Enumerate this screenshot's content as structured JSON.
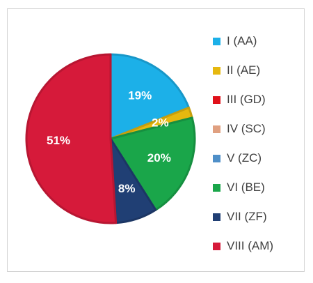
{
  "chart_data": {
    "type": "pie",
    "categories": [
      "I (AA)",
      "II (AE)",
      "III (GD)",
      "IV (SC)",
      "V (ZC)",
      "VI (BE)",
      "VII (ZF)",
      "VIII (AM)"
    ],
    "values": [
      19,
      2,
      0,
      0,
      0,
      20,
      8,
      51
    ],
    "labels": [
      "19%",
      "2%",
      "",
      "",
      "",
      "20%",
      "8%",
      "51%"
    ],
    "colors": [
      "#1cb0e8",
      "#e6b80f",
      "#e0101a",
      "#e0a080",
      "#4f8fc8",
      "#1aa64a",
      "#203f74",
      "#d61a3a"
    ],
    "start_angle_deg": 0,
    "direction": "clockwise",
    "legend_position": "right"
  }
}
